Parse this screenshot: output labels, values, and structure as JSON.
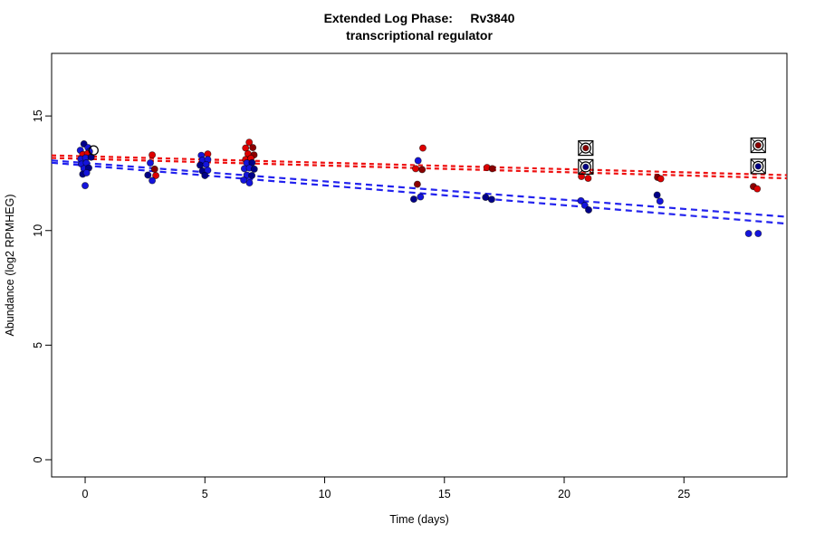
{
  "title": {
    "line1": "Extended Log Phase:     Rv3840",
    "line2": "transcriptional regulator"
  },
  "chart_data": {
    "type": "scatter",
    "title": "Extended Log Phase: Rv3840 transcriptional regulator",
    "xlabel": "Time  (days)",
    "ylabel": "Abundance  (log2 RPMHEG)",
    "xlim": [
      -1.4,
      29.3
    ],
    "ylim": [
      -0.75,
      17.73
    ],
    "x_ticks": [
      0,
      5,
      10,
      15,
      20,
      25
    ],
    "y_ticks": [
      0,
      5,
      10,
      15
    ],
    "grid": false,
    "legend": "none",
    "colors": {
      "red": "#DE0000",
      "darkred": "#8B0000",
      "blue": "#1414DC",
      "navy": "#000088",
      "line_red": "#EE1111",
      "line_blue": "#2222EE",
      "point_edge": "rgba(0,0,0,0.55)"
    },
    "trend_lines": [
      {
        "c": "line_red",
        "x1": -1.4,
        "y1": 13.28,
        "x2": 29.3,
        "y2": 12.42,
        "dash": "5 4"
      },
      {
        "c": "line_red",
        "x1": -1.4,
        "y1": 13.17,
        "x2": 29.3,
        "y2": 12.28,
        "dash": "5 4"
      },
      {
        "c": "line_blue",
        "x1": -1.4,
        "y1": 13.06,
        "x2": 29.3,
        "y2": 10.6,
        "dash": "7 5"
      },
      {
        "c": "line_blue",
        "x1": -1.4,
        "y1": 12.96,
        "x2": 29.3,
        "y2": 10.3,
        "dash": "7 5"
      }
    ],
    "points": [
      [
        -0.05,
        13.78,
        "navy"
      ],
      [
        0.12,
        13.62,
        "blue"
      ],
      [
        -0.2,
        13.5,
        "blue"
      ],
      [
        0.18,
        13.45,
        "blue"
      ],
      [
        -0.1,
        13.32,
        "red"
      ],
      [
        0.1,
        13.36,
        "red"
      ],
      [
        -0.18,
        13.12,
        "blue"
      ],
      [
        0.02,
        13.17,
        "blue"
      ],
      [
        0.25,
        13.2,
        "navy"
      ],
      [
        -0.15,
        12.9,
        "blue"
      ],
      [
        0.05,
        12.95,
        "blue"
      ],
      [
        -0.05,
        12.7,
        "blue"
      ],
      [
        0.15,
        12.73,
        "navy"
      ],
      [
        -0.1,
        12.46,
        "navy"
      ],
      [
        0.06,
        12.52,
        "blue"
      ],
      [
        0.0,
        11.96,
        "blue"
      ],
      [
        2.8,
        13.3,
        "red"
      ],
      [
        2.72,
        12.95,
        "blue"
      ],
      [
        2.9,
        12.68,
        "darkred"
      ],
      [
        2.62,
        12.42,
        "navy"
      ],
      [
        2.95,
        12.4,
        "red"
      ],
      [
        2.8,
        12.18,
        "blue"
      ],
      [
        4.85,
        13.28,
        "blue"
      ],
      [
        5.12,
        13.34,
        "red"
      ],
      [
        4.9,
        13.07,
        "blue"
      ],
      [
        5.12,
        13.1,
        "blue"
      ],
      [
        4.8,
        12.85,
        "navy"
      ],
      [
        5.05,
        12.88,
        "blue"
      ],
      [
        4.9,
        12.6,
        "navy"
      ],
      [
        5.12,
        12.63,
        "blue"
      ],
      [
        5.0,
        12.4,
        "navy"
      ],
      [
        6.85,
        13.85,
        "red"
      ],
      [
        6.7,
        13.6,
        "red"
      ],
      [
        7.0,
        13.62,
        "darkred"
      ],
      [
        6.8,
        13.35,
        "red"
      ],
      [
        7.05,
        13.3,
        "darkred"
      ],
      [
        6.7,
        13.1,
        "red"
      ],
      [
        6.92,
        13.15,
        "red"
      ],
      [
        6.75,
        12.95,
        "blue"
      ],
      [
        6.97,
        12.96,
        "navy"
      ],
      [
        6.65,
        12.7,
        "blue"
      ],
      [
        6.86,
        12.73,
        "blue"
      ],
      [
        7.06,
        12.68,
        "navy"
      ],
      [
        6.75,
        12.42,
        "blue"
      ],
      [
        6.96,
        12.4,
        "navy"
      ],
      [
        6.62,
        12.2,
        "blue"
      ],
      [
        6.86,
        12.08,
        "blue"
      ],
      [
        14.1,
        13.6,
        "red"
      ],
      [
        13.9,
        13.05,
        "blue"
      ],
      [
        13.8,
        12.7,
        "red"
      ],
      [
        14.07,
        12.66,
        "darkred"
      ],
      [
        13.87,
        12.02,
        "darkred"
      ],
      [
        14.0,
        11.47,
        "blue"
      ],
      [
        13.72,
        11.37,
        "navy"
      ],
      [
        16.78,
        12.75,
        "red"
      ],
      [
        17.0,
        12.7,
        "darkred"
      ],
      [
        16.72,
        11.45,
        "navy"
      ],
      [
        16.97,
        11.36,
        "navy"
      ],
      [
        20.72,
        12.36,
        "red"
      ],
      [
        21.0,
        12.28,
        "red"
      ],
      [
        20.7,
        11.3,
        "blue"
      ],
      [
        20.86,
        11.1,
        "blue"
      ],
      [
        21.02,
        10.9,
        "navy"
      ],
      [
        23.9,
        12.32,
        "darkred"
      ],
      [
        24.03,
        12.26,
        "red"
      ],
      [
        23.88,
        11.55,
        "navy"
      ],
      [
        24.0,
        11.28,
        "blue"
      ],
      [
        27.9,
        11.92,
        "darkred"
      ],
      [
        28.06,
        11.82,
        "red"
      ],
      [
        27.7,
        9.87,
        "blue"
      ],
      [
        28.1,
        9.87,
        "blue"
      ]
    ],
    "marked_points": [
      {
        "x": 20.9,
        "y": 13.6,
        "c": "darkred"
      },
      {
        "x": 20.9,
        "y": 12.78,
        "c": "navy"
      },
      {
        "x": 28.1,
        "y": 13.72,
        "c": "darkred"
      },
      {
        "x": 28.1,
        "y": 12.8,
        "c": "navy"
      }
    ],
    "open_points": [
      {
        "x": 0.35,
        "y": 13.5
      }
    ]
  }
}
